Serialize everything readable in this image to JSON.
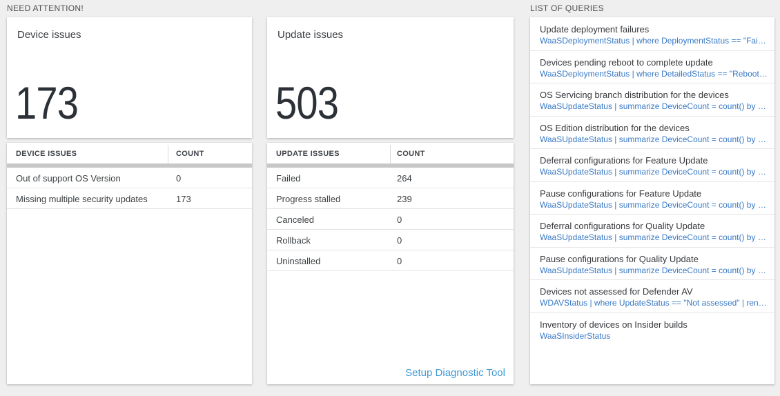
{
  "colors": {
    "page_bg": "#efefef",
    "card_bg": "#ffffff",
    "number_color": "#2c3137",
    "query_link": "#3879c5",
    "action_link": "#3f9ad6"
  },
  "sections": {
    "need_attention": "NEED ATTENTION!",
    "list_of_queries": "LIST OF QUERIES"
  },
  "device_tile": {
    "title": "Device issues",
    "count": "173"
  },
  "update_tile": {
    "title": "Update issues",
    "count": "503"
  },
  "device_table": {
    "headers": [
      "DEVICE ISSUES",
      "COUNT"
    ],
    "rows": [
      {
        "label": "Out of support OS Version",
        "count": "0"
      },
      {
        "label": "Missing multiple security updates",
        "count": "173"
      }
    ]
  },
  "update_table": {
    "headers": [
      "UPDATE ISSUES",
      "COUNT"
    ],
    "rows": [
      {
        "label": "Failed",
        "count": "264"
      },
      {
        "label": "Progress stalled",
        "count": "239"
      },
      {
        "label": "Canceled",
        "count": "0"
      },
      {
        "label": "Rollback",
        "count": "0"
      },
      {
        "label": "Uninstalled",
        "count": "0"
      }
    ],
    "footer_link": "Setup Diagnostic Tool"
  },
  "queries": {
    "items": [
      {
        "title": "Update deployment failures",
        "query": "WaaSDeploymentStatus | where DeploymentStatus == \"Failed\" |..."
      },
      {
        "title": "Devices pending reboot to complete update",
        "query": "WaaSDeploymentStatus | where DetailedStatus == \"Reboot pend..."
      },
      {
        "title": "OS Servicing branch distribution for the devices",
        "query": "WaaSUpdateStatus | summarize DeviceCount = count() by OSSer..."
      },
      {
        "title": "OS Edition distribution for the devices",
        "query": "WaaSUpdateStatus | summarize DeviceCount = count() by OSEdit..."
      },
      {
        "title": "Deferral configurations for Feature Update",
        "query": "WaaSUpdateStatus | summarize DeviceCount = count() by Featur..."
      },
      {
        "title": "Pause configurations for Feature Update",
        "query": "WaaSUpdateStatus | summarize DeviceCount = count() by Featur..."
      },
      {
        "title": "Deferral configurations for Quality Update",
        "query": "WaaSUpdateStatus | summarize DeviceCount = count() by Qualit..."
      },
      {
        "title": "Pause configurations for Quality Update",
        "query": "WaaSUpdateStatus | summarize DeviceCount = count() by Qualit..."
      },
      {
        "title": "Devices not assessed for Defender AV",
        "query": "WDAVStatus | where UpdateStatus == \"Not assessed\" | render ta..."
      },
      {
        "title": "Inventory of devices on Insider builds",
        "query": "WaaSInsiderStatus"
      }
    ]
  }
}
